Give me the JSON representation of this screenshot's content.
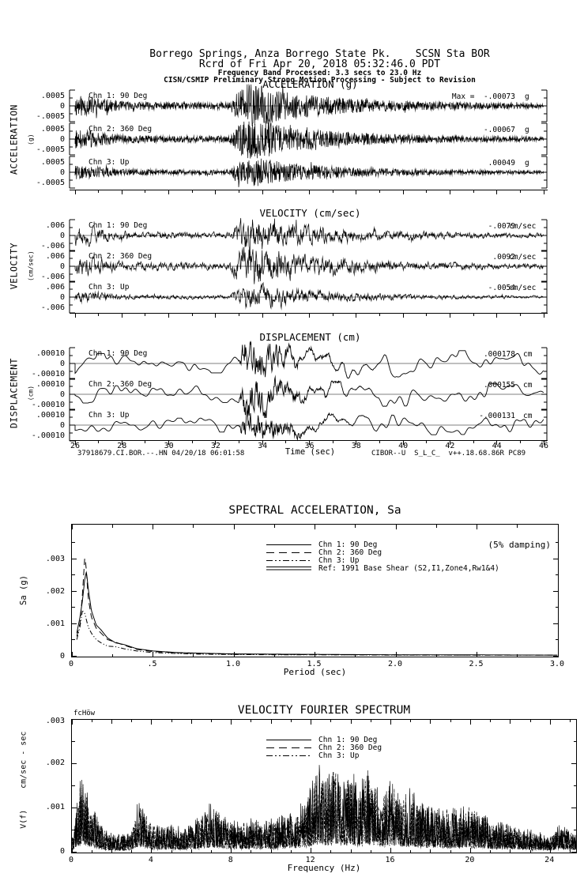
{
  "page": {
    "bg": "#ffffff",
    "fg": "#000000"
  },
  "header": {
    "line1": "Borrego Springs, Anza Borrego State Pk.    SCSN Sta BOR",
    "line2": "Rcrd of Fri Apr 20, 2018 05:32:46.0 PDT",
    "line3": "Frequency Band Processed: 3.3 secs to 23.0 Hz",
    "line4": "CISN/CSMIP Preliminary Strong Motion Processing - Subject to Revision"
  },
  "time_series": {
    "time_axis": {
      "label": "Time (sec)",
      "min": 26,
      "max": 46,
      "ticks": [
        26,
        28,
        30,
        32,
        34,
        36,
        38,
        40,
        42,
        44,
        46
      ]
    },
    "groups": [
      {
        "id": "acceleration",
        "title": "ACCELERATION (g)",
        "side_label": "ACCELERATION",
        "side_unit": "(g)",
        "scale_top": ".0005",
        "scale_zero": "0",
        "scale_bottom": "-.0005",
        "full_scale": 0.0005,
        "channels": [
          {
            "label": "Chn 1: 90 Deg",
            "max_label": "Max =  -.00073",
            "unit": "g",
            "max_value": -0.00073
          },
          {
            "label": "Chn 2: 360 Deg",
            "max_label": "-.00067",
            "unit": "g",
            "max_value": -0.00067
          },
          {
            "label": "Chn 3: Up",
            "max_label": ".00049",
            "unit": "g",
            "max_value": 0.00049
          }
        ]
      },
      {
        "id": "velocity",
        "title": "VELOCITY (cm/sec)",
        "side_label": "VELOCITY",
        "side_unit": "(cm/sec)",
        "scale_top": ".006",
        "scale_zero": "0",
        "scale_bottom": "-.006",
        "full_scale": 0.006,
        "channels": [
          {
            "label": "Chn 1: 90 Deg",
            "max_label": "-.0079",
            "unit": "cm/sec",
            "max_value": -0.0079
          },
          {
            "label": "Chn 2: 360 Deg",
            "max_label": ".0092",
            "unit": "cm/sec",
            "max_value": 0.0092
          },
          {
            "label": "Chn 3: Up",
            "max_label": "-.0054",
            "unit": "cm/sec",
            "max_value": -0.0054
          }
        ]
      },
      {
        "id": "displacement",
        "title": "DISPLACEMENT (cm)",
        "side_label": "DISPLACEMENT",
        "side_unit": "(cm)",
        "scale_top": ".00010",
        "scale_zero": "0",
        "scale_bottom": "-.00010",
        "full_scale": 0.0001,
        "channels": [
          {
            "label": "Chn 1: 90 Deg",
            "max_label": ".000178",
            "unit": "cm",
            "max_value": 0.000178
          },
          {
            "label": "Chn 2: 360 Deg",
            "max_label": ".000155",
            "unit": "cm",
            "max_value": 0.000155
          },
          {
            "label": "Chn 3: Up",
            "max_label": "-.000131",
            "unit": "cm",
            "max_value": -0.000131
          }
        ]
      }
    ],
    "footer_left": "37918679.CI.BOR.--.HN 04/20/18 06:01:58",
    "footer_right": "CIBOR--U  S_L_C_  v++.18.68.86R PC89"
  },
  "sa_chart": {
    "title": "SPECTRAL ACCELERATION, Sa",
    "damping_note": "(5% damping)",
    "xlabel": "Period (sec)",
    "ylabel": "Sa (g)",
    "x_ticks": [
      "0",
      ".5",
      "1.0",
      "1.5",
      "2.0",
      "2.5",
      "3.0"
    ],
    "y_ticks": [
      ".003",
      ".002",
      ".001",
      "0"
    ],
    "legend": [
      {
        "label": "Chn 1: 90 Deg",
        "style": "solid"
      },
      {
        "label": "Chn 2: 360 Deg",
        "style": "long-dash"
      },
      {
        "label": "Chn 3: Up",
        "style": "dash-dot-dot"
      },
      {
        "label": "Ref: 1991 Base Shear (S2,I1,Zone4,Rw1&4)",
        "style": "solid-double"
      }
    ]
  },
  "fourier_chart": {
    "title": "VELOCITY FOURIER SPECTRUM",
    "corner_label": "fcHöw",
    "xlabel": "Frequency (Hz)",
    "ylabel_upper": "cm/sec - sec",
    "ylabel_lower": "V(f)",
    "x_ticks": [
      0,
      4,
      8,
      12,
      16,
      20,
      24
    ],
    "y_ticks": [
      ".003",
      ".002",
      ".001",
      "0"
    ],
    "legend": [
      {
        "label": "Chn 1: 90 Deg",
        "style": "solid"
      },
      {
        "label": "Chn 2: 360 Deg",
        "style": "long-dash"
      },
      {
        "label": "Chn 3: Up",
        "style": "dash-dot-dot"
      }
    ]
  },
  "chart_data": [
    {
      "id": "acceleration-time-series",
      "type": "line",
      "title": "ACCELERATION (g)",
      "xlabel": "Time (sec)",
      "xlim": [
        26,
        46
      ],
      "ylim": [
        -0.0005,
        0.0005
      ],
      "units": "g",
      "series": [
        {
          "name": "Chn 1: 90 Deg",
          "peak_value": -0.00073
        },
        {
          "name": "Chn 2: 360 Deg",
          "peak_value": -0.00067
        },
        {
          "name": "Chn 3: Up",
          "peak_value": 0.00049
        }
      ],
      "shaking_envelope_t": [
        26,
        26.8,
        27.8,
        29,
        31,
        32.6,
        33.0,
        33.35,
        34.2,
        35,
        36,
        37.5,
        39,
        41,
        43,
        46
      ],
      "shaking_envelope_rel": [
        0.5,
        0.42,
        0.22,
        0.18,
        0.16,
        0.16,
        0.75,
        1.0,
        0.9,
        0.62,
        0.5,
        0.36,
        0.26,
        0.19,
        0.15,
        0.11
      ]
    },
    {
      "id": "velocity-time-series",
      "type": "line",
      "title": "VELOCITY (cm/sec)",
      "xlabel": "Time (sec)",
      "xlim": [
        26,
        46
      ],
      "ylim": [
        -0.006,
        0.006
      ],
      "units": "cm/sec",
      "series": [
        {
          "name": "Chn 1: 90 Deg",
          "peak_value": -0.0079
        },
        {
          "name": "Chn 2: 360 Deg",
          "peak_value": 0.0092
        },
        {
          "name": "Chn 3: Up",
          "peak_value": -0.0054
        }
      ],
      "shaking_envelope_t": [
        26,
        26.8,
        27.8,
        29,
        31,
        32.6,
        33.0,
        33.35,
        34.2,
        35,
        36,
        37.5,
        39,
        41,
        43,
        46
      ],
      "shaking_envelope_rel": [
        0.5,
        0.42,
        0.22,
        0.18,
        0.16,
        0.16,
        0.75,
        1.0,
        0.9,
        0.62,
        0.5,
        0.36,
        0.26,
        0.19,
        0.15,
        0.11
      ]
    },
    {
      "id": "displacement-time-series",
      "type": "line",
      "title": "DISPLACEMENT (cm)",
      "xlabel": "Time (sec)",
      "xlim": [
        26,
        46
      ],
      "ylim": [
        -0.0001,
        0.0001
      ],
      "units": "cm",
      "series": [
        {
          "name": "Chn 1: 90 Deg",
          "peak_value": 0.000178
        },
        {
          "name": "Chn 2: 360 Deg",
          "peak_value": 0.000155
        },
        {
          "name": "Chn 3: Up",
          "peak_value": -0.000131
        }
      ],
      "shaking_envelope_t": [
        26,
        30,
        32.9,
        33.3,
        34.5,
        36,
        38,
        46
      ],
      "shaking_envelope_rel": [
        0.32,
        0.3,
        0.3,
        1.0,
        0.75,
        0.52,
        0.44,
        0.38
      ]
    },
    {
      "id": "spectral-acceleration",
      "type": "line",
      "title": "SPECTRAL ACCELERATION, Sa",
      "xlabel": "Period (sec)",
      "ylabel": "Sa (g)",
      "xlim": [
        0,
        3.0
      ],
      "ylim": [
        0,
        0.004
      ],
      "damping": "5%",
      "x_period_sec": [
        0.03,
        0.05,
        0.065,
        0.08,
        0.09,
        0.1,
        0.12,
        0.15,
        0.18,
        0.22,
        0.27,
        0.32,
        0.4,
        0.5,
        0.65,
        0.8,
        1.0,
        1.3,
        1.7,
        2.0,
        2.5,
        3.0
      ],
      "series": [
        {
          "name": "Chn 1: 90 Deg",
          "style": "solid",
          "sa_g": [
            0.0007,
            0.0012,
            0.0017,
            0.0024,
            0.0026,
            0.0021,
            0.0014,
            0.00095,
            0.0008,
            0.00055,
            0.0004,
            0.00035,
            0.00022,
            0.00015,
            0.0001,
            8e-05,
            6e-05,
            5e-05,
            4e-05,
            3e-05,
            3e-05,
            2e-05
          ]
        },
        {
          "name": "Chn 2: 360 Deg",
          "style": "long-dash",
          "sa_g": [
            0.0006,
            0.001,
            0.0019,
            0.0031,
            0.0026,
            0.0018,
            0.0012,
            0.00085,
            0.0007,
            0.0005,
            0.00042,
            0.00033,
            0.0002,
            0.00013,
            9e-05,
            7e-05,
            5e-05,
            4e-05,
            3e-05,
            3e-05,
            2e-05,
            2e-05
          ]
        },
        {
          "name": "Chn 3: Up",
          "style": "dash-dot-dot",
          "sa_g": [
            0.0005,
            0.0009,
            0.0014,
            0.0013,
            0.0011,
            0.0009,
            0.0007,
            0.0005,
            0.0004,
            0.0003,
            0.00028,
            0.00022,
            0.00015,
            0.0001,
            7e-05,
            5e-05,
            4e-05,
            3e-05,
            3e-05,
            2e-05,
            2e-05,
            2e-05
          ]
        },
        {
          "name": "Ref: 1991 Base Shear (S2,I1,Zone4,Rw1&4)",
          "style": "solid-double",
          "sa_g": null,
          "note": "reference curve not distinguishable within plotted Sa range"
        }
      ]
    },
    {
      "id": "velocity-fourier-spectrum",
      "type": "line",
      "title": "VELOCITY FOURIER SPECTRUM",
      "xlabel": "Frequency (Hz)",
      "ylabel": "V(f) cm/sec - sec",
      "xlim": [
        0,
        25.3
      ],
      "ylim": [
        0,
        0.003
      ],
      "series": [
        "Chn 1: 90 Deg",
        "Chn 2: 360 Deg",
        "Chn 3: Up"
      ],
      "spectral_envelope_hz": [
        0.05,
        0.2,
        0.35,
        0.5,
        0.65,
        0.8,
        1.0,
        1.3,
        1.6,
        2.0,
        2.5,
        3.0,
        3.3,
        3.6,
        4.0,
        4.5,
        5.0,
        5.5,
        6.0,
        6.5,
        7.0,
        7.5,
        8.0,
        8.5,
        9.0,
        9.5,
        10.0,
        10.5,
        11.0,
        11.5,
        12.0,
        12.4,
        12.8,
        13.2,
        13.6,
        14.0,
        14.4,
        14.8,
        15.2,
        15.6,
        16.0,
        16.5,
        17.0,
        17.5,
        18.0,
        18.5,
        19.0,
        19.5,
        20.0,
        20.5,
        21.0,
        21.5,
        22.0,
        22.5,
        23.0,
        23.5,
        24.0,
        24.5,
        25.0,
        25.3
      ],
      "spectral_envelope_v": [
        0.0003,
        0.0009,
        0.0013,
        0.0016,
        0.0013,
        0.0011,
        0.0009,
        0.0006,
        0.0004,
        0.00035,
        0.0003,
        0.0004,
        0.0009,
        0.0008,
        0.0005,
        0.00045,
        0.0005,
        0.00045,
        0.0005,
        0.0007,
        0.0009,
        0.0007,
        0.0006,
        0.00055,
        0.0006,
        0.00055,
        0.0006,
        0.00065,
        0.0007,
        0.0009,
        0.0012,
        0.0016,
        0.0014,
        0.0016,
        0.0013,
        0.0015,
        0.0012,
        0.0017,
        0.0012,
        0.0011,
        0.0014,
        0.001,
        0.0012,
        0.0009,
        0.0009,
        0.0008,
        0.0008,
        0.00085,
        0.0009,
        0.0007,
        0.0006,
        0.00055,
        0.0005,
        0.00045,
        0.0004,
        0.00035,
        0.0003,
        0.0005,
        0.0004,
        0.0003
      ]
    }
  ]
}
